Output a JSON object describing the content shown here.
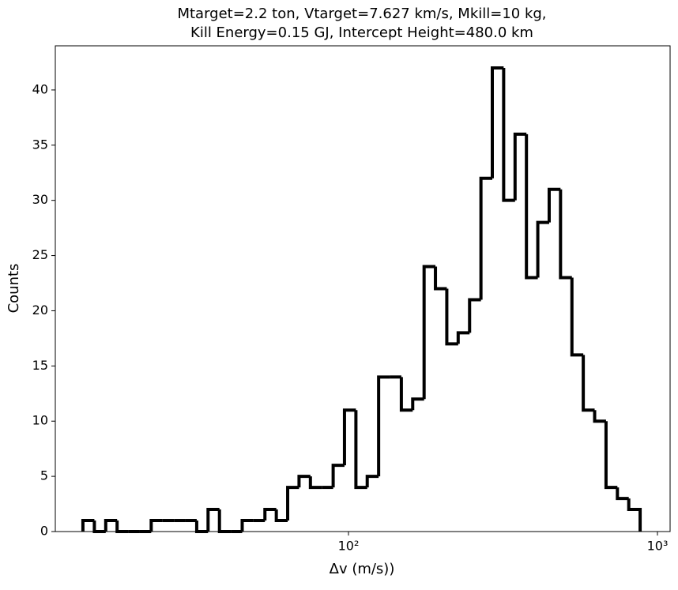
{
  "chart_data": {
    "type": "histogram",
    "title": [
      "Mtarget=2.2 ton, Vtarget=7.627 km/s, Mkill=10 kg,",
      "Kill Energy=0.15 GJ, Intercept Height=480.0 km"
    ],
    "xlabel": "Δv (m/s))",
    "ylabel": "Counts",
    "xscale": "log",
    "color": "#000000",
    "bins": [
      13.82,
      15.05,
      16.38,
      17.83,
      19.41,
      21.12,
      22.99,
      25.02,
      27.24,
      29.65,
      32.27,
      35.12,
      38.23,
      41.61,
      45.29,
      49.29,
      53.65,
      58.4,
      63.56,
      69.18,
      75.3,
      81.96,
      89.21,
      97.07,
      105.7,
      115.0,
      125.2,
      136.2,
      148.3,
      161.4,
      175.7,
      191.2,
      208.1,
      226.5,
      246.6,
      268.4,
      292.1,
      317.9,
      346.1,
      376.7,
      410.0,
      446.3,
      485.7,
      528.7,
      575.4,
      626.3,
      681.7,
      742.0,
      807.6,
      879.0
    ],
    "values": [
      1,
      0,
      1,
      0,
      0,
      0,
      1,
      1,
      1,
      1,
      0,
      2,
      0,
      0,
      1,
      1,
      2,
      1,
      4,
      5,
      4,
      4,
      6,
      11,
      4,
      5,
      14,
      14,
      11,
      12,
      24,
      22,
      17,
      18,
      21,
      32,
      42,
      30,
      36,
      23,
      28,
      31,
      23,
      16,
      11,
      10,
      4,
      3,
      2
    ],
    "xlim": [
      11.25,
      1099
    ],
    "xticks": [
      {
        "value": 100,
        "label": "10²"
      },
      {
        "value": 1000,
        "label": "10³"
      }
    ],
    "ylim": [
      0,
      44
    ],
    "yticks": [
      0,
      5,
      10,
      15,
      20,
      25,
      30,
      35,
      40
    ]
  }
}
